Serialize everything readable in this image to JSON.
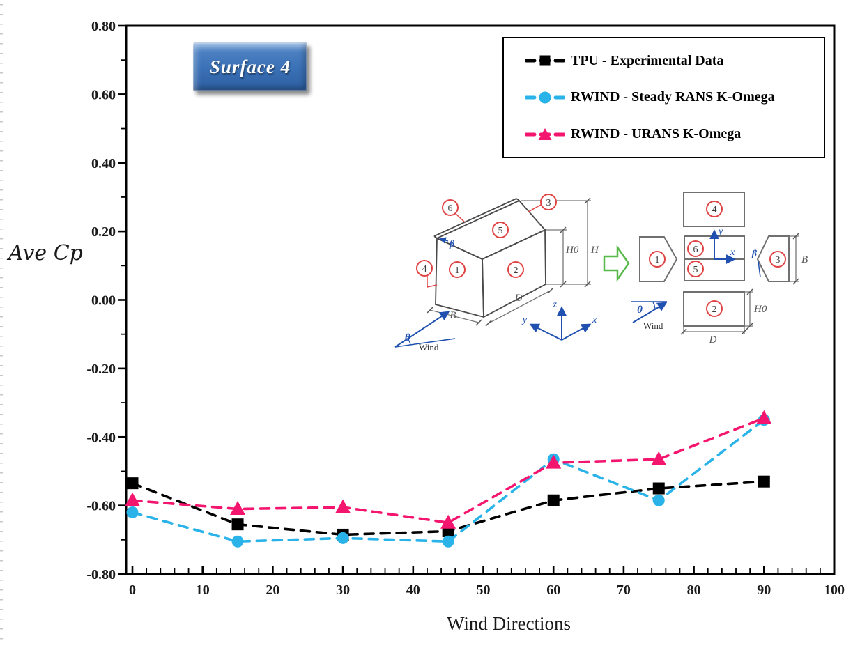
{
  "chart_data": {
    "type": "line",
    "title": "Surface 4",
    "xlabel": "Wind Directions",
    "ylabel": "Ave Cp",
    "x": [
      0,
      15,
      30,
      45,
      60,
      75,
      90
    ],
    "xlim": [
      0,
      100
    ],
    "ylim": [
      -0.8,
      0.8
    ],
    "x_major_step": 10,
    "x_minor_step": 2,
    "y_major_step": 0.2,
    "y_minor_step": 0.1,
    "x_tick_labels": [
      "0",
      "10",
      "20",
      "30",
      "40",
      "50",
      "60",
      "70",
      "80",
      "90",
      "100"
    ],
    "y_tick_labels": [
      "0.80",
      "0.60",
      "0.40",
      "0.20",
      "0.00",
      "-0.20",
      "-0.40",
      "-0.60",
      "-0.80"
    ],
    "grid": false,
    "legend_position": "top-right",
    "line_style": "dashed",
    "series": [
      {
        "name": "TPU - Experimental Data",
        "color": "#000000",
        "marker": "square",
        "values": [
          -0.535,
          -0.655,
          -0.685,
          -0.675,
          -0.585,
          -0.55,
          -0.53
        ]
      },
      {
        "name": "RWIND - Steady RANS K-Omega",
        "color": "#29b3e8",
        "marker": "circle",
        "values": [
          -0.62,
          -0.705,
          -0.695,
          -0.705,
          -0.465,
          -0.585,
          -0.35
        ]
      },
      {
        "name": "RWIND - URANS K-Omega",
        "color": "#f4156f",
        "marker": "triangle",
        "values": [
          -0.585,
          -0.61,
          -0.605,
          -0.65,
          -0.475,
          -0.465,
          -0.345
        ]
      }
    ]
  },
  "inset": {
    "colors": {
      "circle": "#e04343",
      "line": "#4a4a4a",
      "blue": "#2050b0",
      "green": "#56b949",
      "dim": "#777777"
    },
    "house": {
      "surfaces": [
        "1",
        "2",
        "3",
        "4",
        "5",
        "6"
      ],
      "dims": {
        "B": "B",
        "D": "D",
        "H0": "H0",
        "H": "H"
      },
      "beta": "β",
      "theta": "θ",
      "wind_label": "Wind",
      "axes": {
        "x": "x",
        "y": "y",
        "z": "z"
      }
    },
    "unfolded": {
      "surfaces": [
        "1",
        "2",
        "3",
        "4",
        "5",
        "6"
      ],
      "dims": {
        "B": "B",
        "D": "D",
        "H0": "H0"
      },
      "beta": "β",
      "theta": "θ",
      "wind_label": "Wind",
      "axes": {
        "x": "x",
        "y": "y"
      }
    }
  }
}
